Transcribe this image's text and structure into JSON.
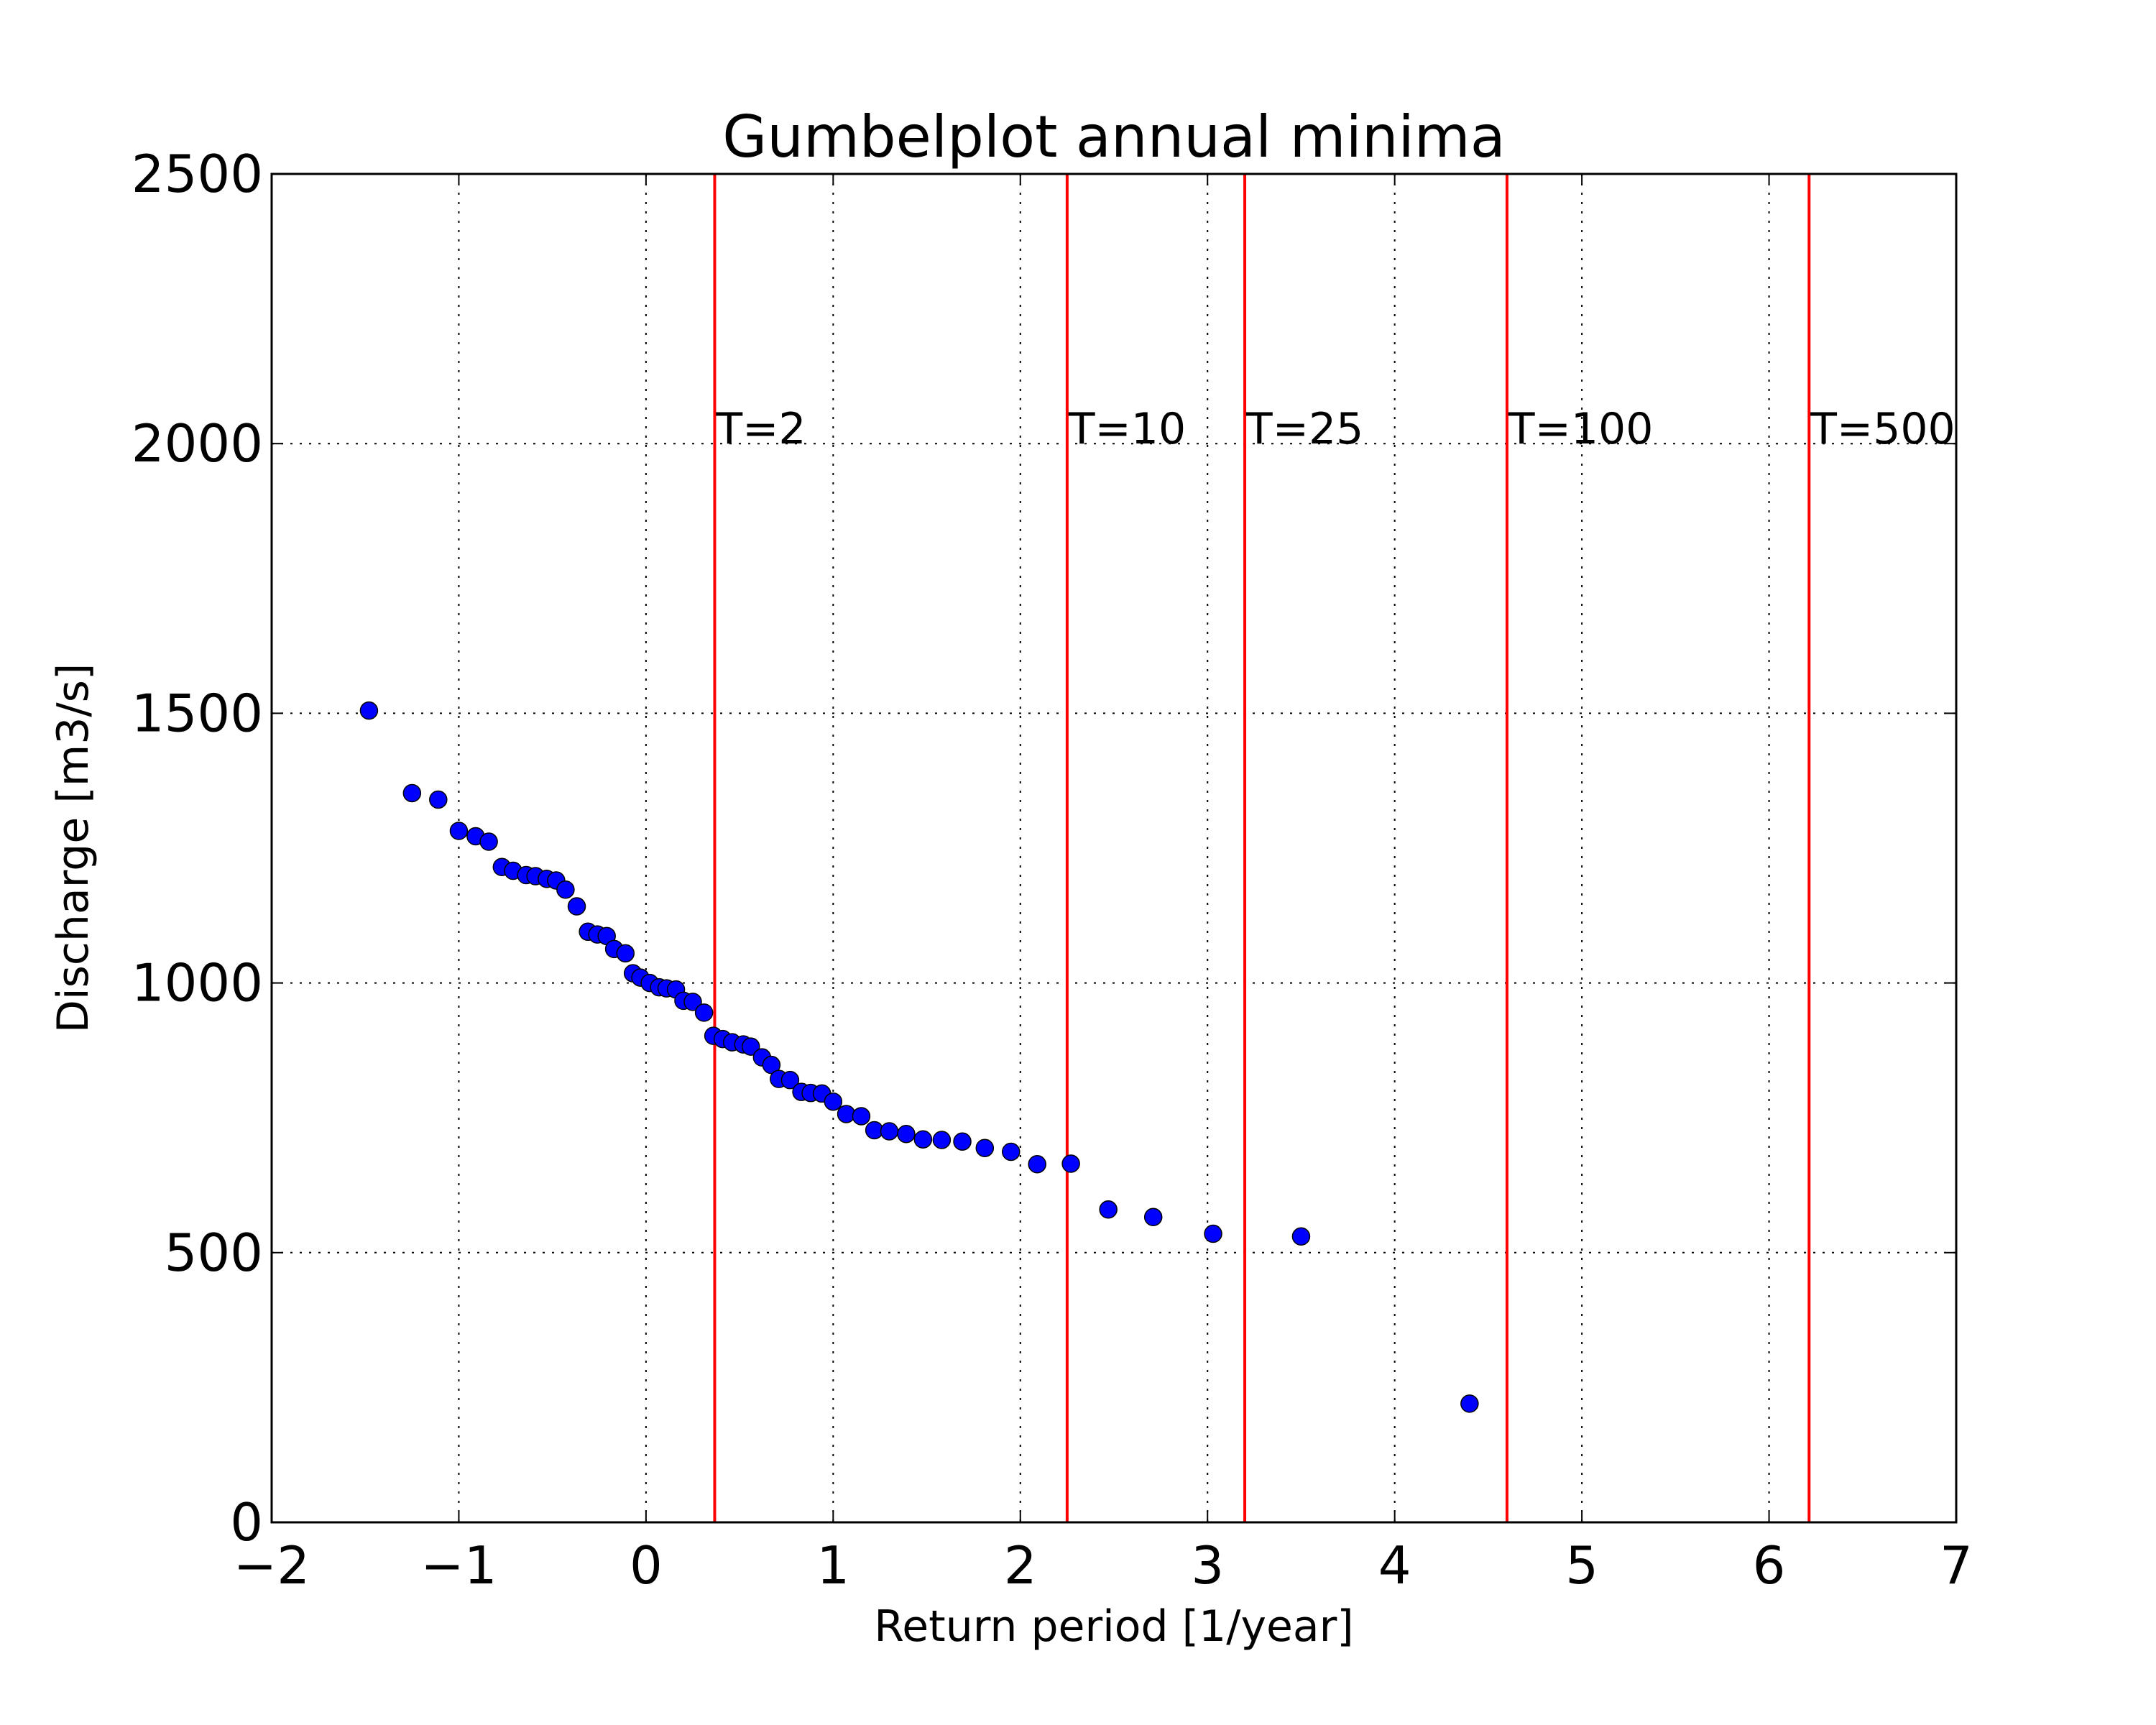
{
  "chart_data": {
    "type": "scatter",
    "title": "Gumbelplot annual minima",
    "xlabel": "Return period [1/year]",
    "ylabel": "Discharge [m3/s]",
    "xlim": [
      -2,
      7
    ],
    "ylim": [
      0,
      2500
    ],
    "xticks": [
      -2,
      -1,
      0,
      1,
      2,
      3,
      4,
      5,
      6,
      7
    ],
    "xtick_labels": [
      "−2",
      "−1",
      "0",
      "1",
      "2",
      "3",
      "4",
      "5",
      "6",
      "7"
    ],
    "yticks": [
      0,
      500,
      1000,
      1500,
      2000,
      2500
    ],
    "ytick_labels": [
      "0",
      "500",
      "1000",
      "1500",
      "2000",
      "2500"
    ],
    "grid": true,
    "marker_color": "#0000ff",
    "ref_line_color": "#ff0000",
    "points": [
      [
        -1.48,
        1505
      ],
      [
        -1.25,
        1352
      ],
      [
        -1.11,
        1340
      ],
      [
        -1.0,
        1282
      ],
      [
        -0.91,
        1272
      ],
      [
        -0.84,
        1262
      ],
      [
        -0.77,
        1215
      ],
      [
        -0.71,
        1208
      ],
      [
        -0.64,
        1200
      ],
      [
        -0.59,
        1198
      ],
      [
        -0.53,
        1193
      ],
      [
        -0.48,
        1190
      ],
      [
        -0.43,
        1173
      ],
      [
        -0.37,
        1142
      ],
      [
        -0.31,
        1095
      ],
      [
        -0.26,
        1090
      ],
      [
        -0.21,
        1087
      ],
      [
        -0.17,
        1063
      ],
      [
        -0.11,
        1055
      ],
      [
        -0.07,
        1018
      ],
      [
        -0.03,
        1010
      ],
      [
        0.02,
        1000
      ],
      [
        0.07,
        992
      ],
      [
        0.11,
        990
      ],
      [
        0.16,
        988
      ],
      [
        0.2,
        967
      ],
      [
        0.25,
        965
      ],
      [
        0.31,
        945
      ],
      [
        0.36,
        902
      ],
      [
        0.41,
        896
      ],
      [
        0.46,
        890
      ],
      [
        0.52,
        886
      ],
      [
        0.56,
        882
      ],
      [
        0.62,
        862
      ],
      [
        0.67,
        848
      ],
      [
        0.71,
        822
      ],
      [
        0.77,
        820
      ],
      [
        0.83,
        798
      ],
      [
        0.88,
        796
      ],
      [
        0.94,
        795
      ],
      [
        1.0,
        780
      ],
      [
        1.07,
        757
      ],
      [
        1.15,
        753
      ],
      [
        1.22,
        727
      ],
      [
        1.3,
        725
      ],
      [
        1.39,
        720
      ],
      [
        1.48,
        710
      ],
      [
        1.58,
        709
      ],
      [
        1.69,
        706
      ],
      [
        1.81,
        694
      ],
      [
        1.95,
        687
      ],
      [
        2.09,
        664
      ],
      [
        2.27,
        665
      ],
      [
        2.47,
        580
      ],
      [
        2.71,
        566
      ],
      [
        3.03,
        535
      ],
      [
        3.5,
        530
      ],
      [
        4.4,
        220
      ]
    ],
    "reference_lines": [
      {
        "x": 0.367,
        "label": "T=2"
      },
      {
        "x": 2.25,
        "label": "T=10"
      },
      {
        "x": 3.199,
        "label": "T=25"
      },
      {
        "x": 4.6,
        "label": "T=100"
      },
      {
        "x": 6.214,
        "label": "T=500"
      }
    ],
    "reference_label_y": 2000
  }
}
